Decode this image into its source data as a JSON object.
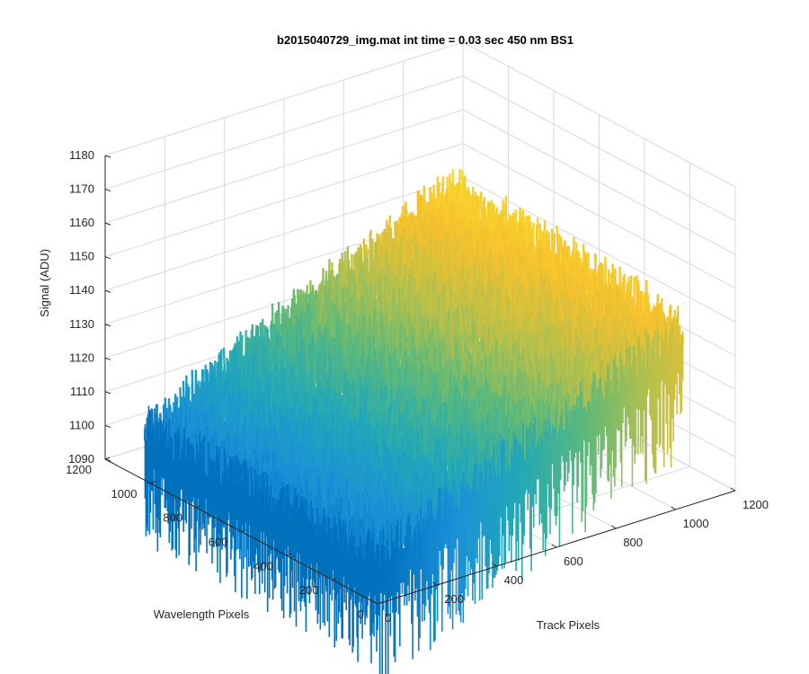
{
  "chart_data": {
    "type": "surface3d",
    "title": "b2015040729_img.mat int time = 0.03 sec  450 nm BS1",
    "xlabel": "Track Pixels",
    "ylabel": "Wavelength Pixels",
    "zlabel": "Signal (ADU)",
    "xlim": [
      0,
      1200
    ],
    "ylim": [
      0,
      1200
    ],
    "zlim": [
      1090,
      1180
    ],
    "xticks": [
      0,
      200,
      400,
      600,
      800,
      1000,
      1200
    ],
    "yticks": [
      0,
      200,
      400,
      600,
      800,
      1000,
      1200
    ],
    "zticks": [
      1090,
      1100,
      1110,
      1120,
      1130,
      1140,
      1150,
      1160,
      1170,
      1180
    ],
    "data_extent": {
      "track_pixels": [
        0,
        1024
      ],
      "wavelength_pixels": [
        0,
        1024
      ]
    },
    "surface_mean_corners": {
      "track0_wave0": 1105,
      "track0_wave1024": 1107,
      "track1024_wave0": 1145,
      "track1024_wave1024": 1150
    },
    "noise_amplitude_adu": 12,
    "colormap": [
      "#0072bd",
      "#1a8fd8",
      "#21a8b8",
      "#5cb97a",
      "#b8c04a",
      "#f5c12e",
      "#f9d92a"
    ],
    "grid": true
  }
}
